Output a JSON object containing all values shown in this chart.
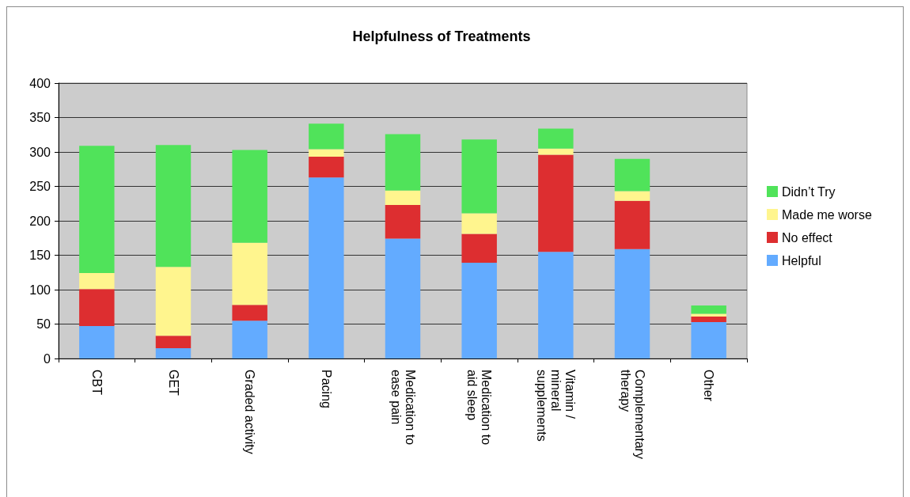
{
  "chart_data": {
    "type": "bar",
    "title": "Helpfulness of Treatments",
    "categories": [
      "CBT",
      "GET",
      "Graded activity",
      "Pacing",
      "Medication to\nease pain",
      "Medication to\naid sleep",
      "Vitamin /\nmineral\nsupplements",
      "Complementary\ntherapy",
      "Other"
    ],
    "stacked": true,
    "series": [
      {
        "name": "Helpful",
        "color": "#63abff",
        "values": [
          47,
          15,
          55,
          263,
          174,
          139,
          155,
          159,
          53
        ]
      },
      {
        "name": "No effect",
        "color": "#dd2e30",
        "values": [
          54,
          18,
          23,
          30,
          49,
          42,
          141,
          70,
          8
        ]
      },
      {
        "name": "Made me worse",
        "color": "#fff58e",
        "values": [
          23,
          100,
          90,
          11,
          21,
          30,
          9,
          14,
          4
        ]
      },
      {
        "name": "Didn’t Try",
        "color": "#50e35a",
        "values": [
          185,
          177,
          135,
          37,
          82,
          107,
          29,
          47,
          12
        ]
      }
    ],
    "ylim": [
      0,
      400
    ],
    "yticks": [
      0,
      50,
      100,
      150,
      200,
      250,
      300,
      350,
      400
    ],
    "grid": "y",
    "legend": "right"
  }
}
